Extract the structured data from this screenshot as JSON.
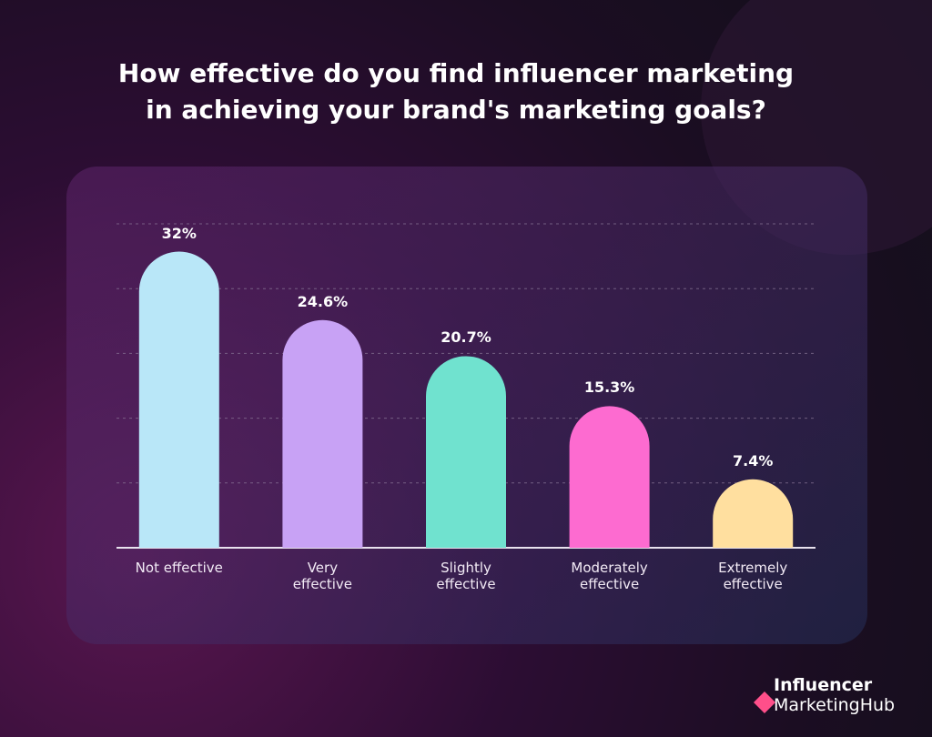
{
  "chart_data": {
    "type": "bar",
    "title": [
      "How effective do you find influencer marketing",
      "in achieving your brand's marketing goals?"
    ],
    "categories": [
      "Not effective",
      "Very effective",
      "Slightly effective",
      "Moderately effective",
      "Extremely effective"
    ],
    "values": [
      32,
      24.6,
      20.7,
      15.3,
      7.4
    ],
    "value_labels": [
      "32%",
      "24.6%",
      "20.7%",
      "15.3%",
      "7.4%"
    ],
    "colors": [
      "#b9e7f8",
      "#c8a2f5",
      "#70e2cf",
      "#fd6bd0",
      "#ffdf9f"
    ],
    "ylim": [
      0,
      35
    ],
    "yticks": [
      0,
      7,
      14,
      21,
      28,
      35
    ],
    "grid": true,
    "show_tick_labels": false
  },
  "branding": {
    "line1": "Influencer",
    "line2": "MarketingHub"
  }
}
